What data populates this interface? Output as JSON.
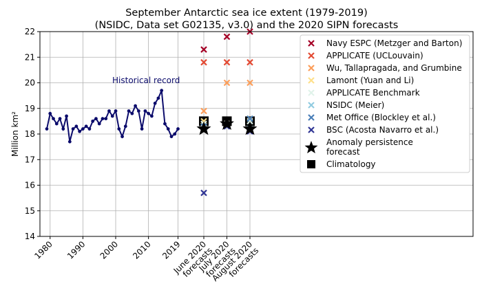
{
  "chart_data": {
    "type": "scatter",
    "title": "September Antarctic sea ice extent (1979-2019)",
    "subtitle": "(NSIDC, Data set G02135, v3.0) and the 2020 SIPN forecasts",
    "ylabel": "Million km²",
    "ylim": [
      14,
      22
    ],
    "yticks": [
      14,
      15,
      16,
      17,
      18,
      19,
      20,
      21,
      22
    ],
    "xticks": [
      "1980",
      "1990",
      "2000",
      "2010",
      "2019",
      "June 2020 forecasts",
      "July 2020 forecasts",
      "August 2020 forecasts"
    ],
    "grid": true,
    "annotation": "Historical record",
    "legend_placement": "top-right",
    "historical": {
      "years": [
        1979,
        1980,
        1981,
        1982,
        1983,
        1984,
        1985,
        1986,
        1987,
        1988,
        1989,
        1990,
        1991,
        1992,
        1993,
        1994,
        1995,
        1996,
        1997,
        1998,
        1999,
        2000,
        2001,
        2002,
        2003,
        2004,
        2005,
        2006,
        2007,
        2008,
        2009,
        2010,
        2011,
        2012,
        2013,
        2014,
        2015,
        2016,
        2017,
        2018,
        2019
      ],
      "values": [
        18.2,
        18.8,
        18.6,
        18.4,
        18.6,
        18.2,
        18.7,
        17.7,
        18.2,
        18.3,
        18.1,
        18.2,
        18.3,
        18.2,
        18.5,
        18.6,
        18.4,
        18.6,
        18.6,
        18.9,
        18.7,
        18.9,
        18.2,
        17.9,
        18.3,
        18.9,
        18.8,
        19.1,
        18.9,
        18.2,
        18.9,
        18.8,
        18.7,
        19.2,
        19.4,
        19.7,
        18.4,
        18.2,
        17.9,
        18.0,
        18.2
      ],
      "color": "#0b0b6b"
    },
    "series": [
      {
        "name": "Navy ESPC (Metzger and Barton)",
        "color": "#a50026",
        "marker": "x",
        "values": [
          21.3,
          21.8,
          22.0
        ]
      },
      {
        "name": "APPLICATE (UCLouvain)",
        "color": "#e34a33",
        "marker": "x",
        "values": [
          20.8,
          20.8,
          20.8
        ]
      },
      {
        "name": "Wu, Tallapragada, and Grumbine",
        "color": "#fc9d59",
        "marker": "x",
        "values": [
          18.9,
          20.0,
          20.0
        ]
      },
      {
        "name": "Lamont (Yuan and Li)",
        "color": "#fee08b",
        "marker": "x",
        "values": [
          18.5,
          18.4,
          18.6
        ]
      },
      {
        "name": "APPLICATE Benchmark",
        "color": "#e0f3ea",
        "marker": "x",
        "values": [
          18.4,
          18.4,
          18.5
        ]
      },
      {
        "name": "NSIDC (Meier)",
        "color": "#91cbe0",
        "marker": "x",
        "values": [
          18.3,
          18.3,
          18.2
        ]
      },
      {
        "name": "Met Office (Blockley et al.)",
        "color": "#4a7fb8",
        "marker": "x",
        "values": [
          18.3,
          18.3,
          18.6
        ]
      },
      {
        "name": "BSC (Acosta Navarro et al.)",
        "color": "#313695",
        "marker": "x",
        "values": [
          15.7,
          18.3,
          18.1
        ]
      },
      {
        "name": "Anomaly persistence forecast",
        "color": "#000000",
        "marker": "star",
        "values": [
          18.2,
          18.4,
          18.2
        ]
      },
      {
        "name": "Climatology",
        "color": "#000000",
        "marker": "square",
        "values": [
          18.5,
          18.5,
          18.5
        ]
      }
    ]
  }
}
